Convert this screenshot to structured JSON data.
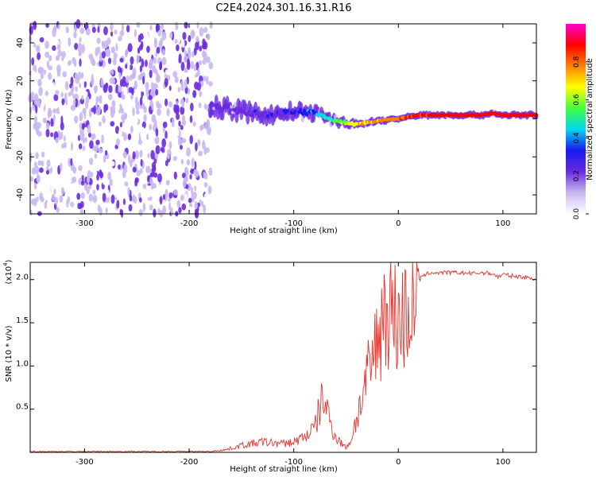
{
  "page_title": "C2E4.2024.301.16.31.R16",
  "colors": {
    "snr_line": "#e8322a",
    "background": "#ffffff",
    "colormap": [
      "#ffffff",
      "#c9b8f0",
      "#6a2be0",
      "#1818f0",
      "#00d8f0",
      "#40ff40",
      "#ffff00",
      "#ff8000",
      "#ff0000",
      "#ff00d0"
    ]
  },
  "chart_data": [
    {
      "type": "heatmap",
      "title": "C2E4.2024.301.16.31.R16",
      "xlabel": "Height of straight line (km)",
      "ylabel": "Frequency (Hz)",
      "xlim": [
        -352,
        132
      ],
      "ylim": [
        -50,
        50
      ],
      "x_ticks": [
        "-300",
        "-200",
        "-100",
        "0",
        "100"
      ],
      "y_ticks": [
        "-40",
        "-20",
        "0",
        "20",
        "40"
      ],
      "colorbar": {
        "label": "Normalized spectral amplitude",
        "range": [
          0,
          1
        ],
        "ticks": [
          "0.0",
          "0.2",
          "0.4",
          "0.6",
          "0.8"
        ]
      },
      "noise_region_x": [
        -352,
        -179
      ],
      "ridge": {
        "x": [
          -180,
          -160,
          -140,
          -120,
          -100,
          -80,
          -60,
          -40,
          -20,
          0,
          20,
          40,
          60,
          80,
          90,
          100,
          132
        ],
        "freq": [
          7,
          5,
          3,
          2,
          4,
          3,
          -1,
          -3,
          -1,
          0,
          2,
          2,
          2,
          2,
          3,
          2,
          2
        ],
        "amplitude": [
          0.25,
          0.25,
          0.3,
          0.3,
          0.35,
          0.45,
          0.6,
          0.75,
          0.8,
          0.85,
          0.9,
          0.95,
          0.95,
          0.95,
          0.95,
          0.95,
          0.95
        ]
      }
    },
    {
      "type": "line",
      "xlabel": "Height of straight line (km)",
      "ylabel": "SNR (10 * v/v)",
      "y_multiplier": "(x10",
      "y_multiplier_exp": "4",
      "y_multiplier_close": ")",
      "xlim": [
        -352,
        132
      ],
      "ylim": [
        0,
        2.2
      ],
      "x_ticks": [
        "-300",
        "-200",
        "-100",
        "0",
        "100"
      ],
      "y_ticks": [
        "0.5",
        "1.0",
        "1.5",
        "2.0"
      ],
      "series": [
        {
          "x": [
            -352,
            -250,
            -180,
            -165,
            -150,
            -130,
            -110,
            -100,
            -90,
            -80,
            -72,
            -65,
            -60,
            -50,
            -45,
            -40,
            -35,
            -30,
            -25,
            -20,
            -15,
            -10,
            -5,
            0,
            5,
            10,
            15,
            20,
            25,
            30,
            40,
            50,
            60,
            70,
            80,
            90,
            95,
            100,
            110,
            120,
            132
          ],
          "values": [
            0.01,
            0.01,
            0.01,
            0.03,
            0.08,
            0.12,
            0.1,
            0.12,
            0.18,
            0.28,
            0.65,
            0.35,
            0.18,
            0.05,
            0.15,
            0.4,
            0.6,
            0.85,
            1.05,
            1.3,
            1.6,
            1.7,
            1.65,
            1.5,
            1.55,
            1.65,
            1.8,
            2.0,
            2.05,
            2.08,
            2.08,
            2.08,
            2.08,
            2.07,
            2.08,
            2.07,
            2.03,
            2.06,
            2.04,
            2.03,
            2.01
          ]
        }
      ]
    }
  ]
}
